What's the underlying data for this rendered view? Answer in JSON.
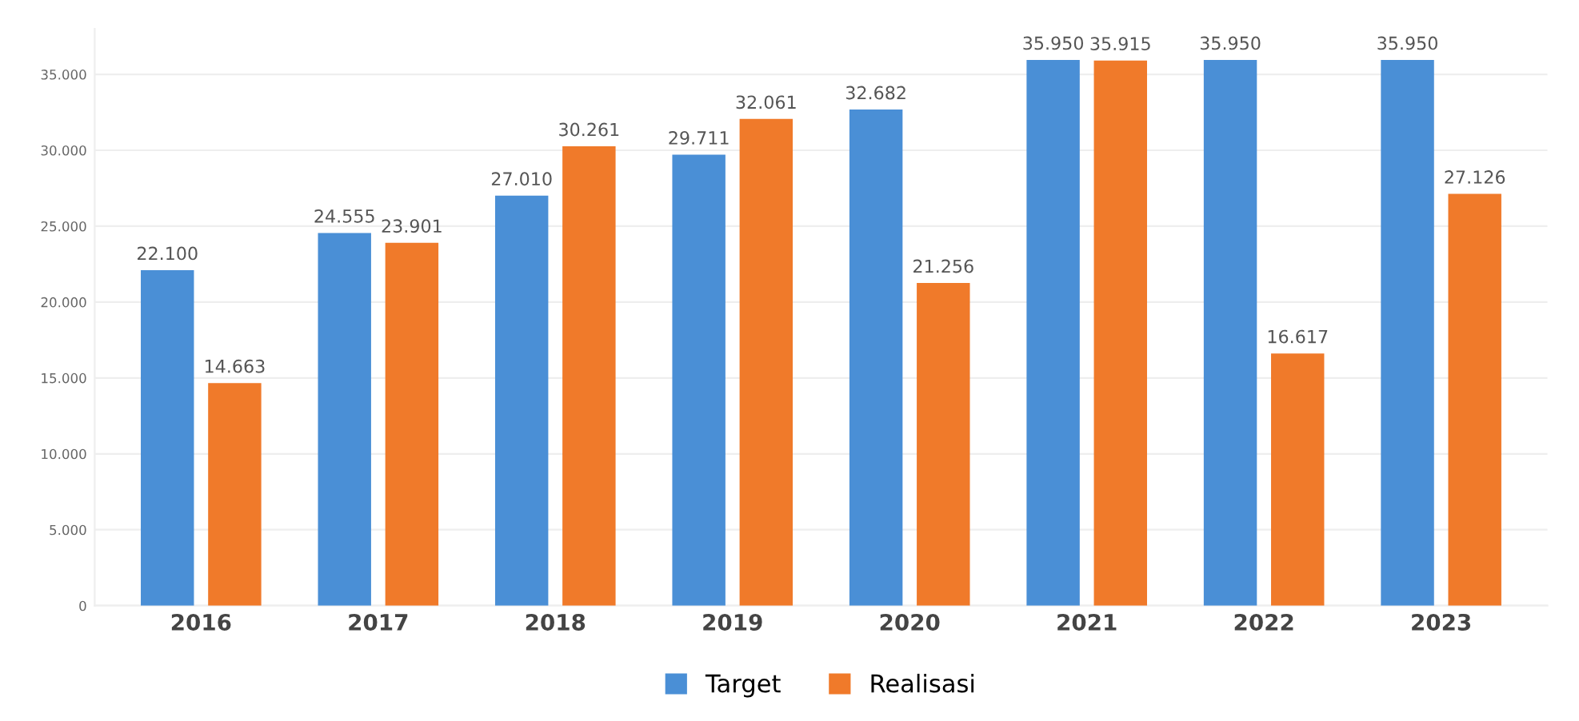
{
  "chart_data": {
    "type": "bar",
    "categories": [
      "2016",
      "2017",
      "2018",
      "2019",
      "2020",
      "2021",
      "2022",
      "2023"
    ],
    "series": [
      {
        "name": "Target",
        "color": "#4a8fd6",
        "values": [
          22100,
          24555,
          27010,
          29711,
          32682,
          35950,
          35950,
          35950
        ],
        "value_labels": [
          "22.100",
          "24.555",
          "27.010",
          "29.711",
          "32.682",
          "35.950",
          "35.950",
          "35.950"
        ]
      },
      {
        "name": "Realisasi",
        "color": "#f07a2a",
        "values": [
          14663,
          23901,
          30261,
          32061,
          21256,
          35915,
          16617,
          27126
        ],
        "value_labels": [
          "14.663",
          "23.901",
          "30.261",
          "32.061",
          "21.256",
          "35.915",
          "16.617",
          "27.126"
        ]
      }
    ],
    "ylim": [
      0,
      38000
    ],
    "yticks": [
      {
        "value": 0,
        "label": "0"
      },
      {
        "value": 5000,
        "label": "5.000"
      },
      {
        "value": 10000,
        "label": "10.000"
      },
      {
        "value": 15000,
        "label": "15.000"
      },
      {
        "value": 20000,
        "label": "20.000"
      },
      {
        "value": 25000,
        "label": "25.000"
      },
      {
        "value": 30000,
        "label": "30.000"
      },
      {
        "value": 35000,
        "label": "35.000"
      }
    ],
    "grid": "y",
    "legend": "bottom"
  }
}
